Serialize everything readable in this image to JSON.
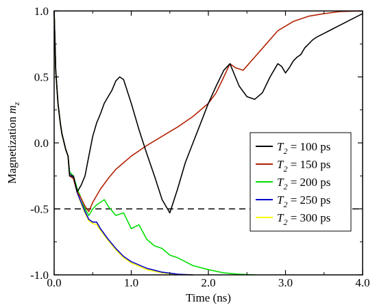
{
  "chart_data": {
    "type": "line",
    "xlabel": "Time (ns)",
    "ylabel": {
      "text": "Magnetization ",
      "var": "m",
      "sub": "z"
    },
    "xlim": [
      0,
      4
    ],
    "ylim": [
      -1,
      1
    ],
    "x_ticks": [
      {
        "value": 0,
        "label": "0.0"
      },
      {
        "value": 1,
        "label": "1.0"
      },
      {
        "value": 2,
        "label": "2.0"
      },
      {
        "value": 3,
        "label": "3.0"
      },
      {
        "value": 4,
        "label": "4.0"
      }
    ],
    "y_ticks": [
      {
        "value": -1,
        "label": "-1.0"
      },
      {
        "value": -0.5,
        "label": "-0.5"
      },
      {
        "value": 0,
        "label": "0.0"
      },
      {
        "value": 0.5,
        "label": "0.5"
      },
      {
        "value": 1,
        "label": "1.0"
      }
    ],
    "grid": false,
    "legend_position": "right",
    "reference_line": {
      "y": -0.5,
      "style": "dashed",
      "color": "#000000"
    },
    "series": [
      {
        "name": "T2 = 100 ps",
        "legend": {
          "var": "T",
          "sub": "2",
          "rest": " = 100 ps"
        },
        "color": "#000000",
        "x": [
          0,
          0.02,
          0.05,
          0.08,
          0.1,
          0.13,
          0.15,
          0.18,
          0.2,
          0.25,
          0.3,
          0.35,
          0.4,
          0.45,
          0.5,
          0.55,
          0.6,
          0.65,
          0.7,
          0.75,
          0.8,
          0.85,
          0.9,
          1.0,
          1.1,
          1.2,
          1.3,
          1.4,
          1.5,
          1.6,
          1.7,
          1.8,
          1.9,
          2.0,
          2.1,
          2.2,
          2.28,
          2.35,
          2.4,
          2.5,
          2.6,
          2.7,
          2.8,
          2.9,
          2.95,
          3.0,
          3.05,
          3.1,
          3.15,
          3.2,
          3.25,
          3.3,
          3.35,
          3.4,
          3.5,
          3.6,
          3.7,
          3.8,
          3.9,
          4.0
        ],
        "y": [
          1.0,
          0.55,
          0.3,
          0.15,
          0.07,
          0.0,
          -0.05,
          -0.1,
          -0.25,
          -0.25,
          -0.37,
          -0.32,
          -0.25,
          -0.1,
          0.05,
          0.15,
          0.22,
          0.3,
          0.35,
          0.4,
          0.47,
          0.5,
          0.48,
          0.3,
          0.1,
          -0.08,
          -0.25,
          -0.43,
          -0.53,
          -0.35,
          -0.15,
          0.0,
          0.15,
          0.3,
          0.43,
          0.55,
          0.6,
          0.5,
          0.43,
          0.35,
          0.33,
          0.38,
          0.5,
          0.6,
          0.58,
          0.53,
          0.57,
          0.62,
          0.65,
          0.67,
          0.72,
          0.75,
          0.78,
          0.8,
          0.83,
          0.86,
          0.89,
          0.92,
          0.95,
          0.98
        ]
      },
      {
        "name": "T2 = 150 ps",
        "legend": {
          "var": "T",
          "sub": "2",
          "rest": " = 150 ps"
        },
        "color": "#b22000",
        "x": [
          0,
          0.02,
          0.05,
          0.08,
          0.1,
          0.13,
          0.15,
          0.18,
          0.2,
          0.25,
          0.3,
          0.35,
          0.4,
          0.45,
          0.5,
          0.6,
          0.7,
          0.8,
          0.9,
          1.0,
          1.2,
          1.4,
          1.6,
          1.8,
          2.0,
          2.1,
          2.2,
          2.28,
          2.35,
          2.45,
          2.6,
          2.75,
          2.9,
          3.1,
          3.3,
          3.5,
          3.7,
          4.0
        ],
        "y": [
          1.0,
          0.55,
          0.3,
          0.15,
          0.07,
          0.0,
          -0.05,
          -0.1,
          -0.25,
          -0.27,
          -0.37,
          -0.42,
          -0.48,
          -0.52,
          -0.45,
          -0.35,
          -0.27,
          -0.2,
          -0.15,
          -0.1,
          -0.02,
          0.05,
          0.12,
          0.2,
          0.3,
          0.38,
          0.5,
          0.6,
          0.57,
          0.55,
          0.65,
          0.75,
          0.85,
          0.92,
          0.96,
          0.98,
          0.995,
          1.0
        ]
      },
      {
        "name": "T2 = 200 ps",
        "legend": {
          "var": "T",
          "sub": "2",
          "rest": " = 200 ps"
        },
        "color": "#00dd00",
        "x": [
          0,
          0.02,
          0.05,
          0.08,
          0.1,
          0.13,
          0.15,
          0.18,
          0.2,
          0.25,
          0.3,
          0.35,
          0.4,
          0.45,
          0.5,
          0.55,
          0.6,
          0.65,
          0.7,
          0.8,
          0.9,
          1.0,
          1.1,
          1.2,
          1.3,
          1.4,
          1.5,
          1.6,
          1.7,
          1.8,
          2.0,
          2.2,
          2.4,
          2.6
        ],
        "y": [
          1.0,
          0.55,
          0.3,
          0.15,
          0.07,
          0.0,
          -0.05,
          -0.1,
          -0.22,
          -0.25,
          -0.35,
          -0.42,
          -0.5,
          -0.55,
          -0.5,
          -0.47,
          -0.45,
          -0.43,
          -0.48,
          -0.55,
          -0.53,
          -0.65,
          -0.62,
          -0.73,
          -0.78,
          -0.8,
          -0.85,
          -0.87,
          -0.9,
          -0.93,
          -0.96,
          -0.985,
          -0.995,
          -1.0
        ]
      },
      {
        "name": "T2 = 250 ps",
        "legend": {
          "var": "T",
          "sub": "2",
          "rest": " = 250 ps"
        },
        "color": "#0000cc",
        "x": [
          0,
          0.02,
          0.05,
          0.08,
          0.1,
          0.13,
          0.15,
          0.18,
          0.2,
          0.25,
          0.3,
          0.35,
          0.4,
          0.45,
          0.5,
          0.55,
          0.6,
          0.7,
          0.8,
          0.9,
          1.0,
          1.2,
          1.4,
          1.6,
          1.8
        ],
        "y": [
          1.0,
          0.55,
          0.3,
          0.15,
          0.07,
          0.0,
          -0.05,
          -0.1,
          -0.22,
          -0.27,
          -0.38,
          -0.45,
          -0.52,
          -0.58,
          -0.6,
          -0.6,
          -0.65,
          -0.73,
          -0.8,
          -0.86,
          -0.9,
          -0.95,
          -0.98,
          -0.995,
          -1.0
        ]
      },
      {
        "name": "T2 = 300 ps",
        "legend": {
          "var": "T",
          "sub": "2",
          "rest": " = 300 ps"
        },
        "color": "#ffff00",
        "x": [
          0,
          0.02,
          0.05,
          0.08,
          0.1,
          0.13,
          0.15,
          0.18,
          0.2,
          0.25,
          0.3,
          0.35,
          0.4,
          0.45,
          0.5,
          0.55,
          0.6,
          0.7,
          0.8,
          0.9,
          1.0,
          1.2,
          1.4,
          1.6,
          1.8
        ],
        "y": [
          1.0,
          0.55,
          0.3,
          0.15,
          0.07,
          0.0,
          -0.05,
          -0.1,
          -0.22,
          -0.27,
          -0.38,
          -0.46,
          -0.53,
          -0.59,
          -0.61,
          -0.62,
          -0.66,
          -0.74,
          -0.81,
          -0.87,
          -0.91,
          -0.96,
          -0.985,
          -0.997,
          -1.0
        ]
      }
    ]
  }
}
